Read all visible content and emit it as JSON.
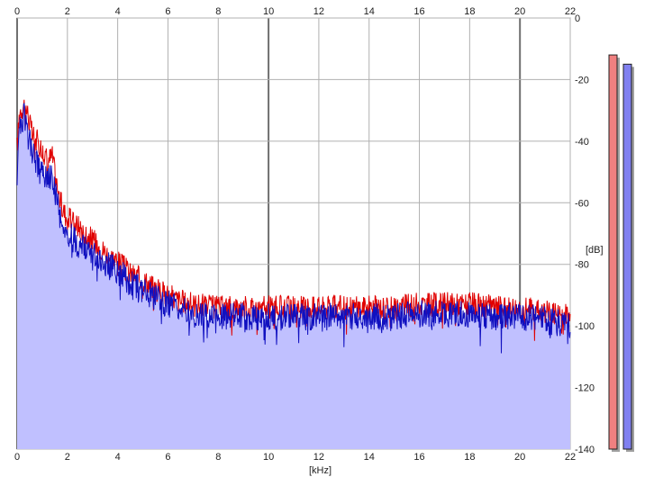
{
  "chart_data": {
    "type": "area",
    "xlabel": "[kHz]",
    "ylabel": "[dB]",
    "xlim": [
      0,
      22
    ],
    "ylim": [
      -140,
      0
    ],
    "x_ticks": [
      "0",
      "2",
      "4",
      "6",
      "8",
      "10",
      "12",
      "14",
      "16",
      "18",
      "20",
      "22"
    ],
    "y_ticks": [
      "0",
      "-20",
      "-40",
      "-60",
      "-80",
      "-100",
      "-120",
      "-140"
    ],
    "grid": true,
    "series": [
      {
        "color": "#e00000",
        "x": [
          0,
          0.1,
          0.2,
          0.3,
          0.4,
          0.6,
          0.8,
          1.0,
          1.2,
          1.4,
          1.6,
          1.8,
          2.0,
          2.5,
          3.0,
          3.5,
          4.0,
          4.5,
          5.0,
          5.5,
          6.0,
          6.5,
          7.0,
          8.0,
          9.0,
          10.0,
          11.0,
          12.0,
          13.0,
          14.0,
          15.0,
          16.0,
          17.0,
          18.0,
          19.0,
          20.0,
          21.0,
          22.0
        ],
        "values": [
          -42,
          -30,
          -29,
          -28,
          -30,
          -38,
          -40,
          -43,
          -46,
          -45,
          -55,
          -62,
          -65,
          -68,
          -72,
          -76,
          -79,
          -83,
          -85,
          -88,
          -90,
          -92,
          -93,
          -94,
          -94,
          -94,
          -94,
          -94,
          -94,
          -94,
          -94,
          -93,
          -93,
          -93,
          -94,
          -94,
          -95,
          -97
        ]
      },
      {
        "color": "#1010c0",
        "x": [
          0,
          0.1,
          0.2,
          0.3,
          0.4,
          0.6,
          0.8,
          1.0,
          1.2,
          1.4,
          1.6,
          1.8,
          2.0,
          2.5,
          3.0,
          3.5,
          4.0,
          4.5,
          5.0,
          5.5,
          6.0,
          6.5,
          7.0,
          8.0,
          9.0,
          10.0,
          11.0,
          12.0,
          13.0,
          14.0,
          15.0,
          16.0,
          17.0,
          18.0,
          19.0,
          20.0,
          21.0,
          22.0
        ],
        "values": [
          -47,
          -34,
          -33,
          -32,
          -34,
          -44,
          -48,
          -50,
          -52,
          -52,
          -60,
          -68,
          -70,
          -74,
          -77,
          -80,
          -82,
          -86,
          -88,
          -91,
          -93,
          -94,
          -96,
          -97,
          -97,
          -97,
          -97,
          -97,
          -97,
          -97,
          -97,
          -96,
          -96,
          -96,
          -97,
          -97,
          -98,
          -100
        ]
      }
    ],
    "level_meters": [
      {
        "color": "#f08080",
        "value_db": -12
      },
      {
        "color": "#8080f0",
        "value_db": -15
      }
    ]
  }
}
